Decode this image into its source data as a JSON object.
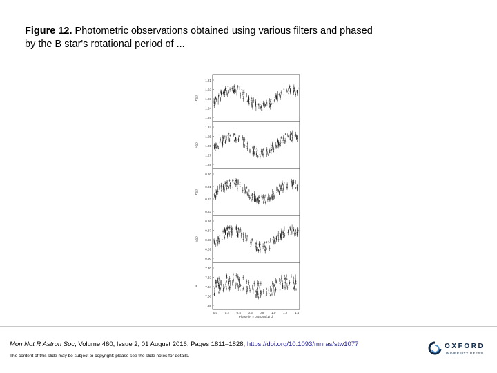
{
  "caption": {
    "label": "Figure 12.",
    "text": " Photometric observations obtained using various filters and phased by the B star's rotational period of ..."
  },
  "figure": {
    "panels": [
      {
        "ylabel": "b(y)",
        "ticks": [
          "1.21",
          "1.22",
          "1.23",
          "1.24",
          "1.25"
        ]
      },
      {
        "ylabel": "v(y)",
        "ticks": [
          "1.24",
          "1.25",
          "1.26",
          "1.27",
          "1.28"
        ]
      },
      {
        "ylabel": "b(y)",
        "ticks": [
          "0.80",
          "0.81",
          "0.82",
          "0.83"
        ]
      },
      {
        "ylabel": "y(y)",
        "ticks": [
          "0.86",
          "0.87",
          "0.88",
          "0.89",
          "0.90"
        ]
      },
      {
        "ylabel": "V",
        "ticks": [
          "7.30",
          "7.32",
          "7.34",
          "7.36",
          "7.38"
        ]
      }
    ],
    "xticks": [
      "0.0",
      "0.2",
      "0.4",
      "0.6",
      "0.8",
      "1.0",
      "1.2",
      "1.4"
    ],
    "xlabel": "Phase (P = 0.55369(1) d)"
  },
  "citation": {
    "journal": "Mon Not R Astron Soc",
    "details": ", Volume 460, Issue 2, 01 August 2016, Pages 1811–1828,",
    "doi": "https://doi.org/10.1093/mnras/stw1077"
  },
  "copyright": "The content of this slide may be subject to copyright: please see the slide notes for details.",
  "logo": {
    "name": "OXFORD",
    "subtitle": "UNIVERSITY PRESS"
  }
}
